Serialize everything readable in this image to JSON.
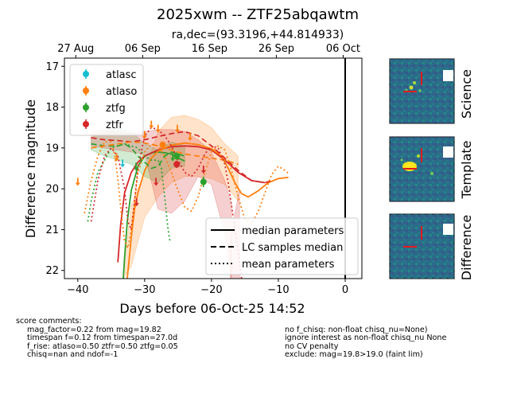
{
  "figure": {
    "title": "2025xwm -- ZTF25abqawtm",
    "subtitle": "ra,dec=(93.3196,+44.814933)"
  },
  "chart_data": {
    "type": "scatter",
    "xlabel": "Days before 06-Oct-25 14:52",
    "ylabel": "Difference magnitude",
    "xlim": [
      -42,
      2.5
    ],
    "ylim": [
      22.2,
      16.8
    ],
    "x_ticks": [
      -40,
      -30,
      -20,
      -10,
      0
    ],
    "y_ticks": [
      17,
      18,
      19,
      20,
      21,
      22
    ],
    "top_axis_ticks": [
      {
        "x": -40.3,
        "label": "27 Aug"
      },
      {
        "x": -30.3,
        "label": "06 Sep"
      },
      {
        "x": -20.3,
        "label": "16 Sep"
      },
      {
        "x": -10.3,
        "label": "26 Sep"
      },
      {
        "x": -0.3,
        "label": "06 Oct"
      }
    ],
    "vline_x": 0,
    "colors": {
      "atlasc": "#17becf",
      "atlaso": "#ff7f0e",
      "ztfg": "#2ca02c",
      "ztfr": "#d62728"
    },
    "legend_filters": {
      "position": "upper-left",
      "entries": [
        "atlasc",
        "atlaso",
        "ztfg",
        "ztfr"
      ]
    },
    "legend_models": {
      "position": "lower-right",
      "entries": [
        {
          "label": "median parameters",
          "style": "solid"
        },
        {
          "label": "LC samples median",
          "style": "dashed"
        },
        {
          "label": "mean parameters",
          "style": "dotted"
        }
      ]
    },
    "detections": [
      {
        "filter": "atlaso",
        "x": -27.3,
        "y": 18.92,
        "err": 0.05
      },
      {
        "filter": "ztfg",
        "x": -25.2,
        "y": 19.2,
        "err": 0.09
      },
      {
        "filter": "ztfr",
        "x": -25.2,
        "y": 19.4,
        "err": 0.09
      },
      {
        "filter": "ztfg",
        "x": -21.2,
        "y": 19.83,
        "err": 0.13
      }
    ],
    "upper_limits": [
      {
        "filter": "atlaso",
        "x": -40.0,
        "y": 19.85
      },
      {
        "filter": "atlaso",
        "x": -34.2,
        "y": 19.25
      },
      {
        "filter": "atlaso",
        "x": -30.0,
        "y": 18.7
      },
      {
        "filter": "atlaso",
        "x": -29.0,
        "y": 18.45
      },
      {
        "filter": "atlaso",
        "x": -28.0,
        "y": 18.55
      },
      {
        "filter": "atlaso",
        "x": -25.1,
        "y": 18.55
      },
      {
        "filter": "atlaso",
        "x": -23.2,
        "y": 18.75
      },
      {
        "filter": "atlasc",
        "x": -33.3,
        "y": 19.4
      },
      {
        "filter": "ztfr",
        "x": -31.2,
        "y": 20.35
      },
      {
        "filter": "ztfr",
        "x": -28.3,
        "y": 19.85
      },
      {
        "filter": "ztfr",
        "x": -21.2,
        "y": 19.55
      },
      {
        "filter": "ztfg",
        "x": -31.3,
        "y": 19.48
      },
      {
        "filter": "ztfg",
        "x": -25.8,
        "y": 19.25
      }
    ],
    "models": [
      {
        "filter": "ztfg",
        "style": "solid",
        "x": [
          -33.2,
          -33.0,
          -32.6,
          -32.0,
          -31.0,
          -30.0,
          -29.0,
          -28.0,
          -27.0,
          -26.0,
          -25.0,
          -24.0
        ],
        "y": [
          22.2,
          21.7,
          20.8,
          20.05,
          19.45,
          19.2,
          19.12,
          19.1,
          19.12,
          19.15,
          19.25,
          19.32
        ]
      },
      {
        "filter": "ztfr",
        "style": "solid",
        "x": [
          -34.0,
          -33.6,
          -33.0,
          -32.0,
          -31.0,
          -30.0,
          -28.0,
          -26.0,
          -24.0,
          -22.0,
          -20.0,
          -18.0,
          -16.0,
          -14.0,
          -12.0
        ],
        "y": [
          21.8,
          20.9,
          20.1,
          19.6,
          19.35,
          19.2,
          19.05,
          18.97,
          18.95,
          18.97,
          19.05,
          19.3,
          19.6,
          19.8,
          19.85
        ]
      },
      {
        "filter": "atlaso",
        "style": "solid",
        "x": [
          -32.6,
          -32.0,
          -31.5,
          -31.0,
          -30.0,
          -29.0,
          -28.0,
          -26.0,
          -24.0,
          -22.0,
          -20.0,
          -18.5,
          -17.5,
          -16.5,
          -15.5,
          -14.5,
          -13.0,
          -11.5,
          -10.0,
          -8.5
        ],
        "y": [
          22.2,
          21.2,
          20.5,
          20.1,
          19.55,
          19.25,
          19.08,
          18.93,
          18.88,
          18.92,
          19.02,
          19.2,
          19.5,
          19.85,
          20.12,
          20.2,
          20.05,
          19.85,
          19.75,
          19.72
        ]
      },
      {
        "filter": "ztfg",
        "style": "dashed",
        "x": [
          -38.0,
          -36.0,
          -34.0,
          -33.0,
          -32.0,
          -31.0,
          -30.0,
          -29.0,
          -28.0,
          -27.0,
          -26.0,
          -25.0,
          -24.0
        ],
        "y": [
          18.9,
          18.95,
          18.95,
          18.9,
          19.0,
          19.2,
          19.35,
          19.5,
          19.45,
          19.2,
          19.1,
          19.15,
          19.2
        ]
      },
      {
        "filter": "ztfr",
        "style": "dashed",
        "x": [
          -38.0,
          -36.0,
          -34.0,
          -32.0,
          -30.0,
          -28.0,
          -26.0,
          -24.0,
          -22.0,
          -20.0,
          -18.0,
          -16.0,
          -14.0,
          -12.0,
          -11.0
        ],
        "y": [
          18.75,
          18.8,
          18.82,
          18.85,
          18.8,
          18.72,
          18.65,
          18.6,
          18.7,
          18.95,
          19.25,
          19.55,
          19.8,
          19.85,
          19.8
        ]
      },
      {
        "filter": "atlaso",
        "style": "dashed",
        "x": [
          -38.0,
          -36.0,
          -34.0,
          -32.0,
          -30.0,
          -28.0,
          -26.0,
          -24.0,
          -22.0,
          -20.0,
          -18.0,
          -16.0
        ],
        "y": [
          19.0,
          18.95,
          18.9,
          18.85,
          18.88,
          18.95,
          19.05,
          19.15,
          19.2,
          19.25,
          19.3,
          19.4
        ]
      },
      {
        "filter": "ztfg",
        "style": "dotted",
        "x": [
          -38.5,
          -38.0,
          -37.0,
          -35.0,
          -33.0,
          -31.0,
          -30.0,
          -29.0,
          -28.0,
          -27.5,
          -27.0,
          -26.5,
          -26.2
        ],
        "y": [
          20.8,
          20.3,
          19.6,
          19.0,
          18.9,
          19.0,
          19.2,
          19.3,
          19.3,
          19.5,
          20.2,
          21.0,
          21.3
        ]
      },
      {
        "filter": "ztfr",
        "style": "dotted",
        "x": [
          -38.0,
          -37.5,
          -37.0,
          -36.0,
          -35.0,
          -34.0,
          -33.0,
          -32.5,
          -32.0,
          -31.5,
          -31.0,
          -30.0,
          -29.0,
          -28.0,
          -27.0,
          -26.0,
          -25.0,
          -24.0,
          -23.0,
          -22.0,
          -21.0,
          -20.0,
          -19.0,
          -18.0,
          -17.5,
          -17.0,
          -16.5,
          -16.0,
          -15.5
        ],
        "y": [
          20.8,
          20.3,
          19.8,
          19.2,
          19.0,
          19.2,
          20.0,
          20.8,
          21.0,
          20.3,
          19.5,
          18.7,
          18.5,
          18.55,
          18.7,
          18.95,
          19.3,
          19.6,
          19.7,
          19.5,
          19.15,
          18.95,
          19.0,
          19.4,
          19.85,
          20.4,
          21.0,
          21.5,
          22.2
        ]
      },
      {
        "filter": "atlaso",
        "style": "dotted",
        "x": [
          -39.0,
          -38.0,
          -37.0,
          -36.0,
          -35.0,
          -34.5,
          -34.0,
          -33.5,
          -33.0,
          -32.5,
          -32.0,
          -31.0,
          -30.0,
          -29.0,
          -28.0,
          -27.0,
          -26.0,
          -25.0,
          -24.0,
          -23.0,
          -22.0,
          -21.0,
          -20.0,
          -19.0,
          -18.0,
          -17.0,
          -16.0,
          -15.0,
          -14.0,
          -13.0,
          -12.0,
          -11.0,
          -10.0,
          -9.0,
          -8.3
        ],
        "y": [
          20.6,
          19.8,
          19.2,
          18.85,
          18.85,
          19.15,
          19.75,
          20.6,
          21.3,
          21.45,
          21.0,
          19.6,
          19.1,
          18.9,
          18.95,
          19.2,
          19.6,
          20.05,
          20.45,
          20.55,
          20.2,
          19.6,
          19.1,
          18.95,
          19.05,
          19.55,
          20.2,
          20.75,
          20.85,
          20.55,
          20.1,
          19.65,
          19.45,
          19.55,
          19.65
        ]
      }
    ],
    "bands": [
      {
        "filter": "atlaso",
        "x": [
          -33.2,
          -32.0,
          -30.0,
          -28.0,
          -26.0,
          -24.0,
          -22.0,
          -20.0,
          -18.0,
          -16.0
        ],
        "lo": [
          22.0,
          20.4,
          19.6,
          18.6,
          18.25,
          18.2,
          18.3,
          18.5,
          18.9,
          19.2
        ],
        "hi": [
          22.2,
          21.9,
          20.7,
          20.2,
          19.85,
          19.7,
          19.7,
          19.75,
          19.9,
          20.3
        ]
      },
      {
        "filter": "ztfg",
        "x": [
          -38.0,
          -36.0,
          -34.0,
          -32.0,
          -30.0,
          -28.0,
          -26.0,
          -24.0
        ],
        "lo": [
          18.75,
          18.6,
          18.5,
          18.6,
          18.9,
          19.05,
          18.85,
          18.95
        ],
        "hi": [
          19.05,
          19.2,
          19.3,
          19.4,
          19.7,
          19.85,
          19.5,
          19.45
        ]
      },
      {
        "filter": "ztfr",
        "x": [
          -38.0,
          -36.0,
          -34.0,
          -32.0,
          -30.0,
          -28.0,
          -26.0,
          -24.0,
          -22.0,
          -20.0,
          -18.0,
          -17.0
        ],
        "lo": [
          18.6,
          18.55,
          18.6,
          18.65,
          18.6,
          18.55,
          18.55,
          18.6,
          18.8,
          19.1,
          19.8,
          20.4
        ],
        "hi": [
          18.95,
          19.0,
          19.05,
          19.1,
          19.15,
          20.5,
          20.6,
          20.3,
          19.7,
          19.9,
          21.1,
          22.2
        ]
      },
      {
        "filter": "ztfr",
        "x": [
          -17.2,
          -16.5,
          -15.8
        ],
        "lo": [
          21.4,
          20.6,
          20.0
        ],
        "hi": [
          22.2,
          22.2,
          22.2
        ]
      }
    ]
  },
  "stamps": {
    "labels": [
      "Science",
      "Template",
      "Difference"
    ]
  },
  "comments": {
    "header": "score comments:",
    "left": [
      "mag_factor=0.22 from mag=19.82",
      "timespan f=0.12 from timespan=27.0d",
      "f_rise: atlaso=0.50 ztfr=0.50 ztfg=0.05",
      "chisq=nan and ndof=-1"
    ],
    "right": [
      "no f_chisq: non-float chisq_nu=None)",
      "ignore interest as non-float chisq_nu None",
      "no CV penalty",
      "exclude: mag=19.8>19.0 (faint lim)"
    ]
  }
}
